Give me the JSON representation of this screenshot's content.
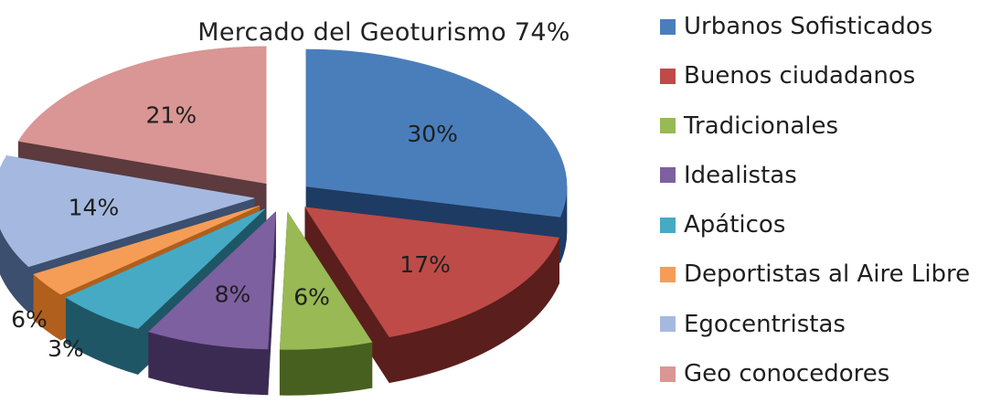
{
  "chart_data": {
    "type": "pie",
    "title": "Mercado del Geoturismo  74%",
    "three_d": true,
    "exploded": true,
    "legend_position": "right",
    "slices": [
      {
        "label": "Urbanos Sofisticados",
        "value": 30,
        "value_label": "30%",
        "color": "#4a7ebb",
        "dark": "#1e3b63",
        "label_outside": false
      },
      {
        "label": "Buenos ciudadanos",
        "value": 17,
        "value_label": "17%",
        "color": "#be4b48",
        "dark": "#5a1e1c",
        "label_outside": false
      },
      {
        "label": "Tradicionales",
        "value": 6,
        "value_label": "6%",
        "color": "#98b954",
        "dark": "#48601f",
        "label_outside": false
      },
      {
        "label": "Idealistas",
        "value": 8,
        "value_label": "8%",
        "color": "#7d60a0",
        "dark": "#3b2b52",
        "label_outside": false
      },
      {
        "label": "Apáticos",
        "value": 6,
        "value_label": "6%",
        "color": "#46aac5",
        "dark": "#1f5665",
        "label_outside": true
      },
      {
        "label": "Deportistas al Aire Libre",
        "value": 3,
        "value_label": "3%",
        "color": "#f59d56",
        "dark": "#b05f1d",
        "label_outside": true
      },
      {
        "label": "Egocentristas",
        "value": 14,
        "value_label": "14%",
        "color": "#a5b9e0",
        "dark": "#3c4f6e",
        "label_outside": false
      },
      {
        "label": "Geo conocedores",
        "value": 21,
        "value_label": "21%",
        "color": "#d99694",
        "dark": "#5c3a3e",
        "label_outside": false
      }
    ]
  }
}
